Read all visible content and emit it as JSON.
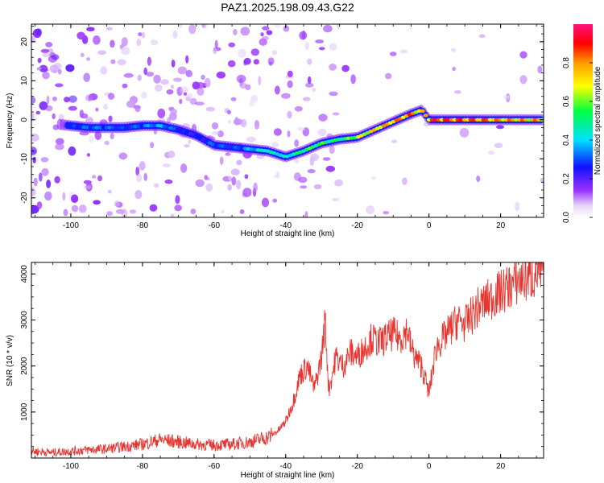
{
  "figure": {
    "title": "PAZ1.2025.198.09.43.G22"
  },
  "colors": {
    "snr_line": "#e8332e",
    "axis": "#000000",
    "background": "#ffffff"
  },
  "chart_data": [
    {
      "type": "heatmap",
      "title": "PAZ1.2025.198.09.43.G22",
      "xlabel": "Height of straight line (km)",
      "ylabel": "Frequency (Hz)",
      "xlim": [
        -111,
        32
      ],
      "ylim": [
        -25,
        24.5
      ],
      "xticks": [
        -100,
        -80,
        -60,
        -40,
        -20,
        0,
        20
      ],
      "yticks": [
        -20,
        -10,
        0,
        10,
        20
      ],
      "grid": false,
      "colorbar": {
        "label": "Normalized spectral amplitude",
        "range": [
          0.0,
          1.0
        ],
        "ticks": [
          0.0,
          0.2,
          0.4,
          0.6,
          0.8
        ],
        "tick_labels": [
          "0.0",
          "0.2",
          "0.4",
          "0.6",
          "0.8"
        ],
        "colormap": "rainbow (white → purple → blue → cyan → green → yellow → orange → red → magenta)"
      },
      "ridge": {
        "description": "dominant frequency trace vs height",
        "height_km": [
          -105,
          -100,
          -95,
          -90,
          -85,
          -80,
          -75,
          -70,
          -65,
          -60,
          -55,
          -50,
          -45,
          -40,
          -35,
          -30,
          -25,
          -20,
          -15,
          -10,
          -5,
          -2,
          0,
          5,
          10,
          15,
          20,
          25,
          30
        ],
        "frequency_hz": [
          -1,
          -1.5,
          -2,
          -2,
          -2,
          -1.5,
          -1.5,
          -2.5,
          -4,
          -6.5,
          -7,
          -7.5,
          -8,
          -9.5,
          -8,
          -6,
          -5,
          -4.5,
          -2.5,
          -0.5,
          1.5,
          2.5,
          0,
          0,
          0,
          0,
          0,
          0,
          0
        ],
        "amplitude": [
          0.2,
          0.3,
          0.35,
          0.35,
          0.3,
          0.35,
          0.4,
          0.3,
          0.25,
          0.35,
          0.3,
          0.4,
          0.5,
          0.45,
          0.6,
          0.6,
          0.55,
          0.7,
          0.8,
          0.85,
          0.9,
          0.75,
          0.95,
          0.95,
          0.9,
          0.9,
          0.85,
          0.85,
          0.85
        ]
      }
    },
    {
      "type": "line",
      "xlabel": "Height of straight line (km)",
      "ylabel": "SNR (10 * v/v)",
      "xlim": [
        -111,
        32
      ],
      "ylim": [
        0,
        4250
      ],
      "xticks": [
        -100,
        -80,
        -60,
        -40,
        -20,
        0,
        20
      ],
      "yticks": [
        1000,
        2000,
        3000,
        4000
      ],
      "grid": false,
      "series": [
        {
          "height_km": [
            -111,
            -105,
            -100,
            -95,
            -90,
            -85,
            -80,
            -75,
            -70,
            -65,
            -60,
            -55,
            -50,
            -45,
            -42,
            -40,
            -38,
            -36,
            -34,
            -32,
            -30,
            -29,
            -28,
            -27,
            -26,
            -24,
            -22,
            -20,
            -18,
            -16,
            -14,
            -12,
            -10,
            -8,
            -6,
            -5,
            -4,
            -2,
            0,
            1,
            2,
            4,
            6,
            8,
            10,
            12,
            14,
            16,
            18,
            20,
            22,
            24,
            26,
            28,
            30,
            32
          ],
          "snr": [
            150,
            120,
            150,
            180,
            200,
            250,
            300,
            400,
            350,
            300,
            280,
            300,
            350,
            450,
            600,
            800,
            1200,
            1800,
            2000,
            1500,
            2200,
            3000,
            1500,
            1800,
            2200,
            2000,
            2300,
            2200,
            2400,
            2600,
            2500,
            2600,
            2700,
            2600,
            2800,
            2400,
            2200,
            2000,
            1400,
            1900,
            2400,
            2600,
            2800,
            3000,
            2900,
            3100,
            3300,
            3400,
            3500,
            3600,
            3700,
            3800,
            3900,
            3900,
            4000,
            4050
          ]
        }
      ]
    }
  ]
}
